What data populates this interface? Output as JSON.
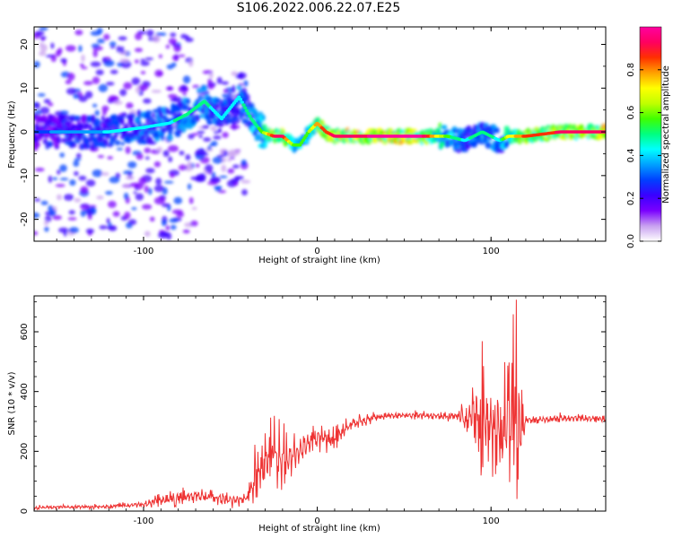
{
  "page_title": "S106.2022.006.22.07.E25",
  "chart_data": [
    {
      "type": "heatmap",
      "title": "S106.2022.006.22.07.E25",
      "xlabel": "Height of straight line (km)",
      "ylabel": "Frequency (Hz)",
      "xlim": [
        -163,
        166
      ],
      "ylim": [
        -25,
        24
      ],
      "xticks": [
        -100,
        0,
        100
      ],
      "yticks": [
        -20,
        -10,
        0,
        10,
        20
      ],
      "colorbar": {
        "label": "Normalized spectral amplitude",
        "range": [
          0,
          1
        ],
        "ticks": [
          "0.0",
          "0.2",
          "0.4",
          "0.6",
          "0.8"
        ],
        "colormap": [
          "#ffffff",
          "#c8a0f0",
          "#7a00ff",
          "#3a00ff",
          "#0040ff",
          "#00a0ff",
          "#00ffff",
          "#00ff80",
          "#40ff00",
          "#c0ff00",
          "#ffff00",
          "#ffa000",
          "#ff3000",
          "#ff0060",
          "#ff00a0"
        ]
      },
      "ridge": {
        "x": [
          -163,
          -140,
          -120,
          -100,
          -85,
          -75,
          -65,
          -55,
          -45,
          -38,
          -32,
          -25,
          -20,
          -14,
          -10,
          -5,
          0,
          5,
          10,
          20,
          40,
          60,
          75,
          85,
          95,
          105,
          110,
          120,
          140,
          166
        ],
        "frequency": [
          0,
          0,
          0,
          1,
          2,
          4,
          7,
          3,
          8,
          3,
          0,
          -1,
          -1,
          -3,
          -3,
          0,
          2,
          0,
          -1,
          -1,
          -1,
          -1,
          -1,
          -2,
          0,
          -2,
          -1,
          -1,
          0,
          0
        ],
        "peak_amplitude": [
          0.3,
          0.35,
          0.4,
          0.45,
          0.45,
          0.5,
          0.5,
          0.4,
          0.45,
          0.5,
          0.55,
          0.9,
          0.9,
          0.6,
          0.6,
          0.6,
          0.8,
          0.85,
          0.95,
          0.95,
          0.98,
          0.98,
          0.55,
          0.45,
          0.5,
          0.45,
          0.7,
          0.85,
          0.9,
          0.95
        ]
      },
      "noise_region_km": [
        -163,
        -50
      ]
    },
    {
      "type": "line",
      "xlabel": "Height of straight line (km)",
      "ylabel": "SNR (10 * v/v)",
      "xlim": [
        -163,
        166
      ],
      "ylim": [
        0,
        720
      ],
      "xticks": [
        -100,
        0,
        100
      ],
      "yticks": [
        0,
        200,
        400,
        600
      ],
      "color": "#ee3333",
      "series": [
        {
          "x": [
            -163,
            -140,
            -120,
            -100,
            -90,
            -80,
            -70,
            -60,
            -50,
            -45,
            -40,
            -35,
            -30,
            -25,
            -20,
            -15,
            -10,
            -5,
            0,
            5,
            10,
            15,
            20,
            25,
            30,
            40,
            50,
            60,
            70,
            80,
            85,
            90,
            95,
            100,
            105,
            110,
            115,
            120,
            130,
            140,
            150,
            166
          ],
          "y": [
            12,
            14,
            15,
            22,
            35,
            45,
            50,
            45,
            40,
            35,
            45,
            110,
            160,
            170,
            160,
            180,
            200,
            230,
            240,
            245,
            230,
            270,
            290,
            300,
            310,
            320,
            320,
            320,
            318,
            320,
            300,
            320,
            280,
            300,
            250,
            320,
            250,
            305,
            305,
            310,
            312,
            308
          ],
          "envelope_max": [
            20,
            22,
            25,
            35,
            60,
            80,
            75,
            70,
            60,
            55,
            60,
            260,
            300,
            320,
            300,
            260,
            260,
            280,
            290,
            300,
            280,
            310,
            320,
            325,
            330,
            335,
            335,
            338,
            335,
            340,
            370,
            420,
            570,
            550,
            560,
            580,
            720,
            330,
            325,
            330,
            332,
            325
          ],
          "envelope_min": [
            5,
            6,
            8,
            10,
            15,
            15,
            20,
            15,
            10,
            10,
            20,
            30,
            60,
            80,
            70,
            100,
            150,
            180,
            190,
            195,
            190,
            220,
            260,
            280,
            290,
            305,
            305,
            305,
            300,
            300,
            250,
            230,
            100,
            120,
            90,
            60,
            40,
            290,
            295,
            298,
            300,
            295
          ]
        }
      ]
    }
  ]
}
